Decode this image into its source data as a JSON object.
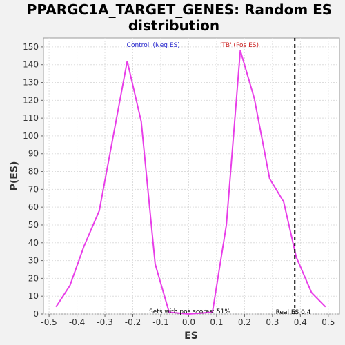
{
  "chart_data": {
    "type": "line",
    "title_line1": "PPARGC1A_TARGET_GENES: Random ES",
    "title_line2": "distribution",
    "xlabel": "ES",
    "ylabel": "P(ES)",
    "xlim": [
      -0.52,
      0.54
    ],
    "ylim": [
      0,
      155
    ],
    "xticks": [
      -0.5,
      -0.4,
      -0.3,
      -0.2,
      -0.1,
      0.0,
      0.1,
      0.2,
      0.3,
      0.4,
      0.5
    ],
    "xtick_labels": [
      "-0.5",
      "-0.4",
      "-0.3",
      "-0.2",
      "-0.1",
      "0.0",
      "0.1",
      "0.2",
      "0.3",
      "0.4",
      "0.5"
    ],
    "yticks": [
      0,
      10,
      20,
      30,
      40,
      50,
      60,
      70,
      80,
      90,
      100,
      110,
      120,
      130,
      140,
      150
    ],
    "grid": true,
    "series": [
      {
        "color": "#e83ee8",
        "x": [
          -0.475,
          -0.425,
          -0.375,
          -0.32,
          -0.22,
          -0.17,
          -0.12,
          -0.07,
          0.0,
          0.085,
          0.135,
          0.185,
          0.235,
          0.29,
          0.34,
          0.385,
          0.44,
          0.49
        ],
        "y": [
          4,
          16,
          38,
          58,
          142,
          108,
          28,
          1,
          0,
          1,
          50,
          148,
          121,
          76,
          63,
          32,
          12,
          4
        ]
      }
    ],
    "real_es": 0.38,
    "annotations": {
      "neg_label": "'Control' (Neg ES)",
      "pos_label": "'TB' (Pos ES)",
      "pos_scores": "Sets with pos scores: 51%",
      "real_es_label": "Real ES 0.4"
    },
    "colors": {
      "neg_label": "#2222cc",
      "pos_label": "#cc2222",
      "line": "#e83ee8",
      "plot_bg": "#ffffff",
      "page_bg": "#f2f2f2"
    }
  }
}
